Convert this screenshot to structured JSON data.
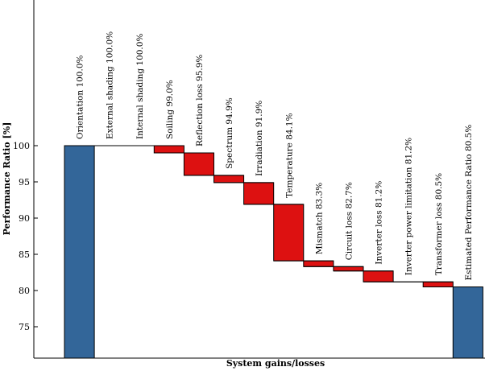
{
  "chart_data": {
    "type": "bar",
    "subtype": "waterfall",
    "title": "",
    "xlabel": "System gains/losses",
    "ylabel": "Performance Ratio [%]",
    "ylim": [
      70,
      100
    ],
    "yticks": [
      75,
      80,
      85,
      90,
      95,
      100
    ],
    "grid": false,
    "colors": {
      "total": "#336699",
      "loss": "#dd1111",
      "edge": "#000000"
    },
    "categories": [
      "Orientation 100.0%",
      "External shading 100.0%",
      "Internal shading 100.0%",
      "Soiling 99.0%",
      "Reflection loss 95.9%",
      "Spectrum 94.9%",
      "Irradiation 91.9%",
      "Temperature 84.1%",
      "Mismatch 83.3%",
      "Circuit loss 82.7%",
      "Inverter loss 81.2%",
      "Inverter power limitation 81.2%",
      "Transformer loss 80.5%",
      "Estimated Performance Ratio 80.5%"
    ],
    "values": [
      100.0,
      100.0,
      100.0,
      99.0,
      95.9,
      94.9,
      91.9,
      84.1,
      83.3,
      82.7,
      81.2,
      81.2,
      80.5,
      80.5
    ],
    "kinds": [
      "total",
      "step",
      "step",
      "step",
      "step",
      "step",
      "step",
      "step",
      "step",
      "step",
      "step",
      "step",
      "step",
      "total"
    ]
  }
}
